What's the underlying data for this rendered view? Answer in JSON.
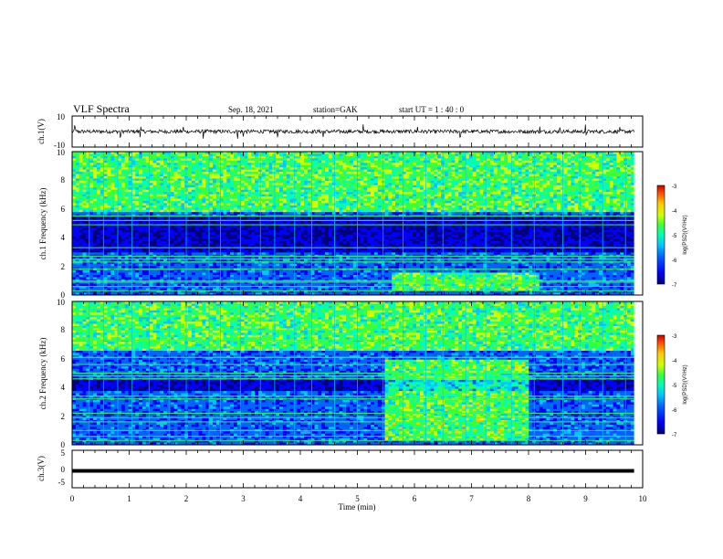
{
  "header": {
    "title": "VLF Spectra",
    "date": "Sep. 18, 2021",
    "station": "station=GAK",
    "start_ut": "start UT =  1 : 40 : 0"
  },
  "colors": {
    "spectrogram_scale": [
      "#00007a",
      "#0000ff",
      "#0064ff",
      "#00c8ff",
      "#00ffb4",
      "#3cff3c",
      "#d2ff00",
      "#ffc800",
      "#ff5000",
      "#c80000"
    ],
    "background_blue": "#00007a",
    "text": "#000000"
  },
  "chart_data": [
    {
      "type": "line",
      "name": "ch1-waveform",
      "ylabel": "ch.1(V)",
      "ylim": [
        -10,
        10
      ],
      "yticks": [
        "10",
        "-10"
      ],
      "x_range_min": [
        0,
        9.85
      ],
      "baseline_v": 0,
      "noise_amplitude_v": 1.2,
      "spike_times_min": [
        0.05,
        0.85,
        1.2,
        1.95,
        2.3,
        2.9,
        3.0,
        3.6,
        4.4,
        5.1,
        6.05,
        6.8,
        8.2,
        8.55,
        9.0,
        9.6
      ]
    },
    {
      "type": "heatmap",
      "name": "ch1-spectrogram",
      "ylabel": "ch.1 Frequency (kHz)",
      "ylim": [
        0,
        10
      ],
      "yticks": [
        "0",
        "2",
        "4",
        "6",
        "8",
        "10"
      ],
      "x_range_min": [
        0,
        9.85
      ],
      "colorbar": {
        "label": "log(PSD)(V²/Hz)",
        "range": [
          -7,
          -3
        ],
        "ticks": [
          "-3",
          "-4",
          "-5",
          "-6",
          "-7"
        ]
      },
      "upper_band_khz": [
        5.8,
        10
      ],
      "quiet_band_khz": [
        3.0,
        5.5
      ],
      "hum_lines_khz": [
        0.3,
        0.6,
        0.9,
        1.0,
        1.8,
        2.3,
        2.5,
        2.7,
        3.3,
        4.9,
        5.2,
        5.5
      ],
      "emission_event": {
        "t_min": [
          5.6,
          8.2
        ],
        "f_khz": [
          0.3,
          1.5
        ]
      },
      "sferic_times_min": [
        0.3,
        0.55,
        0.8,
        1.05,
        1.35,
        1.7,
        2.0,
        2.4,
        2.6,
        2.95,
        3.3,
        3.55,
        3.9,
        4.2,
        4.6,
        5.0,
        5.45,
        5.8,
        6.2,
        6.5,
        6.9,
        7.25,
        7.7,
        8.1,
        8.6,
        8.9,
        9.3,
        9.7
      ]
    },
    {
      "type": "heatmap",
      "name": "ch2-spectrogram",
      "ylabel": "ch.2 Frequency (kHz)",
      "ylim": [
        0,
        10
      ],
      "yticks": [
        "0",
        "2",
        "4",
        "6",
        "8",
        "10"
      ],
      "x_range_min": [
        0,
        9.85
      ],
      "colorbar": {
        "label": "log(PSD)(V²/Hz)",
        "range": [
          -7,
          -3
        ],
        "ticks": [
          "-3",
          "-4",
          "-5",
          "-6",
          "-7"
        ]
      },
      "upper_band_khz": [
        6.5,
        10
      ],
      "quiet_band_khz": [
        3.7,
        4.5
      ],
      "hum_lines_khz": [
        0.3,
        0.6,
        1.0,
        1.6,
        1.9,
        2.2,
        3.2,
        3.4,
        4.6,
        4.8,
        5.0,
        5.6,
        6.1,
        7.3,
        8.0
      ],
      "emission_event": {
        "t_min": [
          5.5,
          8.0
        ],
        "f_khz": [
          0.3,
          6.0
        ]
      },
      "sferic_times_min": [
        0.3,
        0.55,
        0.8,
        1.05,
        1.35,
        1.7,
        2.0,
        2.4,
        2.6,
        2.95,
        3.3,
        3.55,
        3.9,
        4.2,
        4.6,
        5.0,
        5.45,
        5.8,
        6.2,
        6.5,
        6.9,
        7.25,
        7.7,
        8.1,
        8.6,
        8.9,
        9.3,
        9.7
      ]
    },
    {
      "type": "line",
      "name": "ch3-waveform",
      "ylabel": "ch.3(V)",
      "ylim": [
        -5,
        5
      ],
      "yticks": [
        "5",
        "0",
        "-5"
      ],
      "x_range_min": [
        0,
        9.85
      ],
      "baseline_v": -0.5
    }
  ],
  "xaxis": {
    "label": "Time (min)",
    "range": [
      0,
      10
    ],
    "ticks": [
      "0",
      "1",
      "2",
      "3",
      "4",
      "5",
      "6",
      "7",
      "8",
      "9",
      "10"
    ]
  }
}
